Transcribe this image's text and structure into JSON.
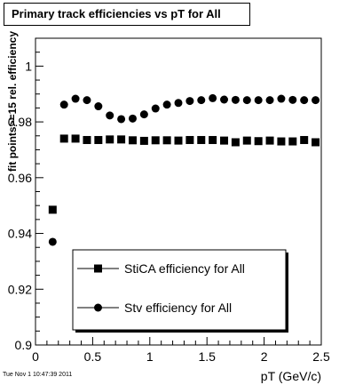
{
  "chart_data": {
    "type": "scatter",
    "title": "Primary track efficiencies vs pT for All",
    "xlabel": "pT (GeV/c)",
    "ylabel": "fit points>=15 rel. efficiency",
    "xlim": [
      0,
      2.5
    ],
    "ylim": [
      0.9,
      1.01
    ],
    "x_ticks": [
      0,
      0.5,
      1,
      1.5,
      2,
      2.5
    ],
    "x_tick_labels": [
      "0",
      "0.5",
      "1",
      "1.5",
      "2",
      "2.5"
    ],
    "y_ticks": [
      0.9,
      0.92,
      0.94,
      0.96,
      0.98,
      1.0
    ],
    "y_tick_labels": [
      "0.9",
      "0.92",
      "0.94",
      "0.96",
      "0.98",
      "1"
    ],
    "grid": false,
    "legend_position": "bottom-center",
    "series": [
      {
        "name": "StiCA efficiency  for All",
        "marker": "square",
        "color": "#000000",
        "x": [
          0.15,
          0.25,
          0.35,
          0.45,
          0.55,
          0.65,
          0.75,
          0.85,
          0.95,
          1.05,
          1.15,
          1.25,
          1.35,
          1.45,
          1.55,
          1.65,
          1.75,
          1.85,
          1.95,
          2.05,
          2.15,
          2.25,
          2.35,
          2.45
        ],
        "y": [
          0.9485,
          0.974,
          0.974,
          0.9735,
          0.9735,
          0.9737,
          0.9737,
          0.9734,
          0.9732,
          0.9734,
          0.9734,
          0.9733,
          0.9735,
          0.9735,
          0.9735,
          0.9733,
          0.9727,
          0.9733,
          0.9731,
          0.9733,
          0.973,
          0.973,
          0.9735,
          0.9727
        ]
      },
      {
        "name": "Stv efficiency  for All",
        "marker": "circle",
        "color": "#000000",
        "x": [
          0.15,
          0.25,
          0.35,
          0.45,
          0.55,
          0.65,
          0.75,
          0.85,
          0.95,
          1.05,
          1.15,
          1.25,
          1.35,
          1.45,
          1.55,
          1.65,
          1.75,
          1.85,
          1.95,
          2.05,
          2.15,
          2.25,
          2.35,
          2.45
        ],
        "y": [
          0.937,
          0.9862,
          0.9883,
          0.9878,
          0.9856,
          0.9823,
          0.981,
          0.9812,
          0.9827,
          0.9848,
          0.9862,
          0.9868,
          0.9875,
          0.9878,
          0.9885,
          0.988,
          0.9879,
          0.9878,
          0.9878,
          0.9878,
          0.9883,
          0.9879,
          0.9878,
          0.9878
        ]
      }
    ]
  },
  "footer": {
    "timestamp": "Tue Nov  1 10:47:39 2011"
  }
}
